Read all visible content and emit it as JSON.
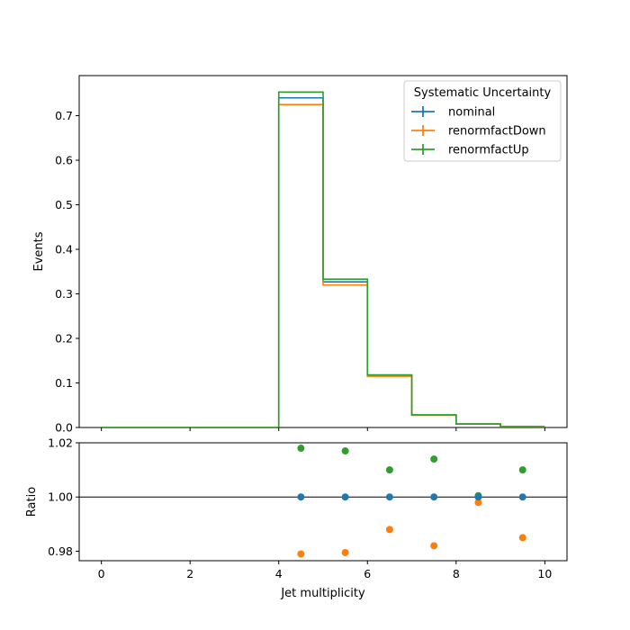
{
  "chart_data": [
    {
      "type": "line",
      "style": "step",
      "title": "",
      "xlabel": "",
      "ylabel": "Events",
      "xlim": [
        -0.5,
        10.5
      ],
      "ylim": [
        0,
        0.79
      ],
      "xticks": [
        0,
        2,
        4,
        6,
        8,
        10
      ],
      "yticks": [
        {
          "value": 0.0,
          "label": "0.0"
        },
        {
          "value": 0.1,
          "label": "0.1"
        },
        {
          "value": 0.2,
          "label": "0.2"
        },
        {
          "value": 0.3,
          "label": "0.3"
        },
        {
          "value": 0.4,
          "label": "0.4"
        },
        {
          "value": 0.5,
          "label": "0.5"
        },
        {
          "value": 0.6,
          "label": "0.6"
        },
        {
          "value": 0.7,
          "label": "0.7"
        }
      ],
      "bin_edges": [
        0,
        1,
        2,
        3,
        4,
        5,
        6,
        7,
        8,
        9,
        10
      ],
      "legend": {
        "title": "Systematic Uncertainty",
        "placement": "top-right"
      },
      "series": [
        {
          "name": "nominal",
          "color": "#1f77b4",
          "values": [
            0,
            0,
            0,
            0,
            0.74,
            0.327,
            0.117,
            0.028,
            0.008,
            0.002
          ]
        },
        {
          "name": "renormfactDown",
          "color": "#ff7f0e",
          "values": [
            0,
            0,
            0,
            0,
            0.725,
            0.32,
            0.115,
            0.0275,
            0.0079,
            0.00197
          ]
        },
        {
          "name": "renormfactUp",
          "color": "#2ca02c",
          "values": [
            0,
            0,
            0,
            0,
            0.753,
            0.333,
            0.118,
            0.0284,
            0.00801,
            0.00202
          ]
        }
      ]
    },
    {
      "type": "scatter",
      "title": "",
      "xlabel": "Jet multiplicity",
      "ylabel": "Ratio",
      "xlim": [
        -0.5,
        10.5
      ],
      "ylim": [
        0.9765,
        1.02
      ],
      "xticks": [
        0,
        2,
        4,
        6,
        8,
        10
      ],
      "yticks": [
        {
          "value": 0.98,
          "label": "0.98"
        },
        {
          "value": 1.0,
          "label": "1.00"
        },
        {
          "value": 1.02,
          "label": "1.02"
        }
      ],
      "reference_line": 1.0,
      "x": [
        4.5,
        5.5,
        6.5,
        7.5,
        8.5,
        9.5
      ],
      "series": [
        {
          "name": "nominal",
          "color": "#1f77b4",
          "values": [
            1.0,
            1.0,
            1.0,
            1.0,
            1.0,
            1.0
          ]
        },
        {
          "name": "renormfactDown",
          "color": "#ff7f0e",
          "values": [
            0.979,
            0.9795,
            0.988,
            0.982,
            0.998,
            0.985
          ]
        },
        {
          "name": "renormfactUp",
          "color": "#2ca02c",
          "values": [
            1.018,
            1.017,
            1.01,
            1.014,
            1.0005,
            1.01
          ]
        }
      ]
    }
  ]
}
